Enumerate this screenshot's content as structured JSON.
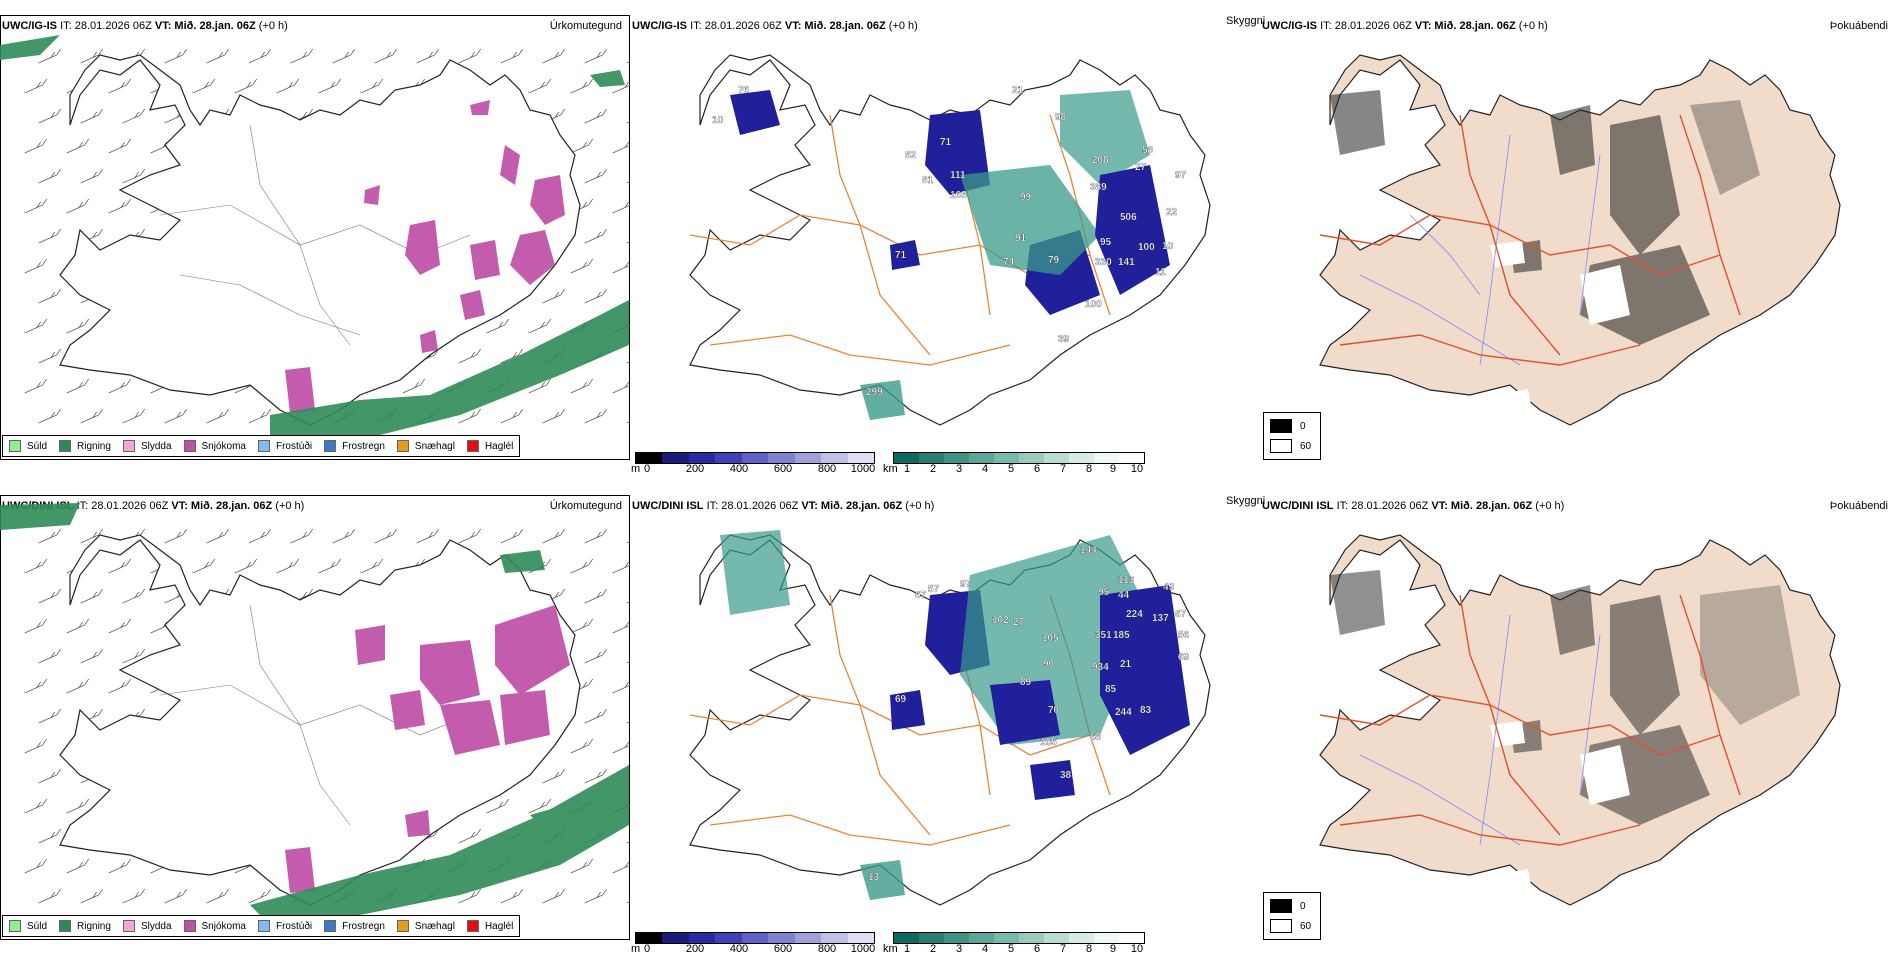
{
  "rows": [
    {
      "panels": [
        {
          "model": "UWC/IG-IS",
          "it": "IT: 28.01.2026 06Z",
          "vt_label": "VT:",
          "vt": "Mið. 28.jan. 06Z",
          "offset": "(+0 h)",
          "field": "Úrkomutegund"
        },
        {
          "model": "UWC/IG-IS",
          "it": "IT: 28.01.2026 06Z",
          "vt_label": "VT:",
          "vt": "Mið. 28.jan. 06Z",
          "offset": "(+0 h)",
          "field": "Skyggni"
        },
        {
          "model": "UWC/IG-IS",
          "it": "IT: 28.01.2026 06Z",
          "vt_label": "VT:",
          "vt": "Mið. 28.jan. 06Z",
          "offset": "(+0 h)",
          "field": "Þokuábendi"
        }
      ],
      "vis_labels": [
        {
          "v": "76"
        },
        {
          "v": "10"
        },
        {
          "v": "21"
        },
        {
          "v": "98"
        },
        {
          "v": "71"
        },
        {
          "v": "82"
        },
        {
          "v": "111"
        },
        {
          "v": "81"
        },
        {
          "v": "168"
        },
        {
          "v": "208"
        },
        {
          "v": "58"
        },
        {
          "v": "27"
        },
        {
          "v": "389"
        },
        {
          "v": "97"
        },
        {
          "v": "99"
        },
        {
          "v": "506"
        },
        {
          "v": "22"
        },
        {
          "v": "91"
        },
        {
          "v": "95"
        },
        {
          "v": "100"
        },
        {
          "v": "10"
        },
        {
          "v": "74"
        },
        {
          "v": "79"
        },
        {
          "v": "330"
        },
        {
          "v": "141"
        },
        {
          "v": "11"
        },
        {
          "v": "71"
        },
        {
          "v": "100"
        },
        {
          "v": "39"
        },
        {
          "v": "299"
        }
      ]
    },
    {
      "panels": [
        {
          "model": "UWC/DINI ISL",
          "it": "IT: 28.01.2026 06Z",
          "vt_label": "VT:",
          "vt": "Mið. 28.jan. 06Z",
          "offset": "(+0 h)",
          "field": "Úrkomutegund"
        },
        {
          "model": "UWC/DINI ISL",
          "it": "IT: 28.01.2026 06Z",
          "vt_label": "VT:",
          "vt": "Mið. 28.jan. 06Z",
          "offset": "(+0 h)",
          "field": "Skyggni"
        },
        {
          "model": "UWC/DINI ISL",
          "it": "IT: 28.01.2026 06Z",
          "vt_label": "VT:",
          "vt": "Mið. 28.jan. 06Z",
          "offset": "(+0 h)",
          "field": "Þokuábendi"
        }
      ],
      "vis_labels": [
        {
          "v": "144"
        },
        {
          "v": "57"
        },
        {
          "v": "97"
        },
        {
          "v": "67"
        },
        {
          "v": "95"
        },
        {
          "v": "113"
        },
        {
          "v": "49"
        },
        {
          "v": "44"
        },
        {
          "v": "102"
        },
        {
          "v": "27"
        },
        {
          "v": "224"
        },
        {
          "v": "137"
        },
        {
          "v": "67"
        },
        {
          "v": "105"
        },
        {
          "v": "351"
        },
        {
          "v": "185"
        },
        {
          "v": "56"
        },
        {
          "v": "90"
        },
        {
          "v": "934"
        },
        {
          "v": "21"
        },
        {
          "v": "69"
        },
        {
          "v": "89"
        },
        {
          "v": "85"
        },
        {
          "v": "69"
        },
        {
          "v": "70"
        },
        {
          "v": "244"
        },
        {
          "v": "83"
        },
        {
          "v": "105"
        },
        {
          "v": "68"
        },
        {
          "v": "38"
        },
        {
          "v": "13"
        }
      ]
    }
  ],
  "precip_legend": [
    {
      "label": "Súld",
      "color": "#90ee90"
    },
    {
      "label": "Rigning",
      "color": "#2e8b57"
    },
    {
      "label": "Slydda",
      "color": "#f4a6d7"
    },
    {
      "label": "Snjókoma",
      "color": "#c04fa8"
    },
    {
      "label": "Frostúði",
      "color": "#87b8f0"
    },
    {
      "label": "Frostregn",
      "color": "#3a78c8"
    },
    {
      "label": "Snæhagl",
      "color": "#e69a20"
    },
    {
      "label": "Haglél",
      "color": "#e01010"
    }
  ],
  "height_scale": {
    "unit": "m",
    "ticks": [
      "0",
      "200",
      "400",
      "600",
      "800",
      "1000"
    ]
  },
  "visibility_scale": {
    "unit": "km",
    "ticks": [
      "1",
      "2",
      "3",
      "4",
      "5",
      "6",
      "7",
      "8",
      "9",
      "10"
    ]
  },
  "cloud_legend": [
    {
      "label": "0",
      "color": "#000000"
    },
    {
      "label": "60",
      "color": "#ffffff"
    }
  ],
  "colors": {
    "snow": "#c04fa8",
    "rain": "#2e8b57",
    "roads": "#e8843a",
    "fog_land": "#f1dccb",
    "fog_roads": "#e05030",
    "rivers": "#7a8cff",
    "vis_dark": "#20209a",
    "vis_teal": "#3b9a8a"
  }
}
